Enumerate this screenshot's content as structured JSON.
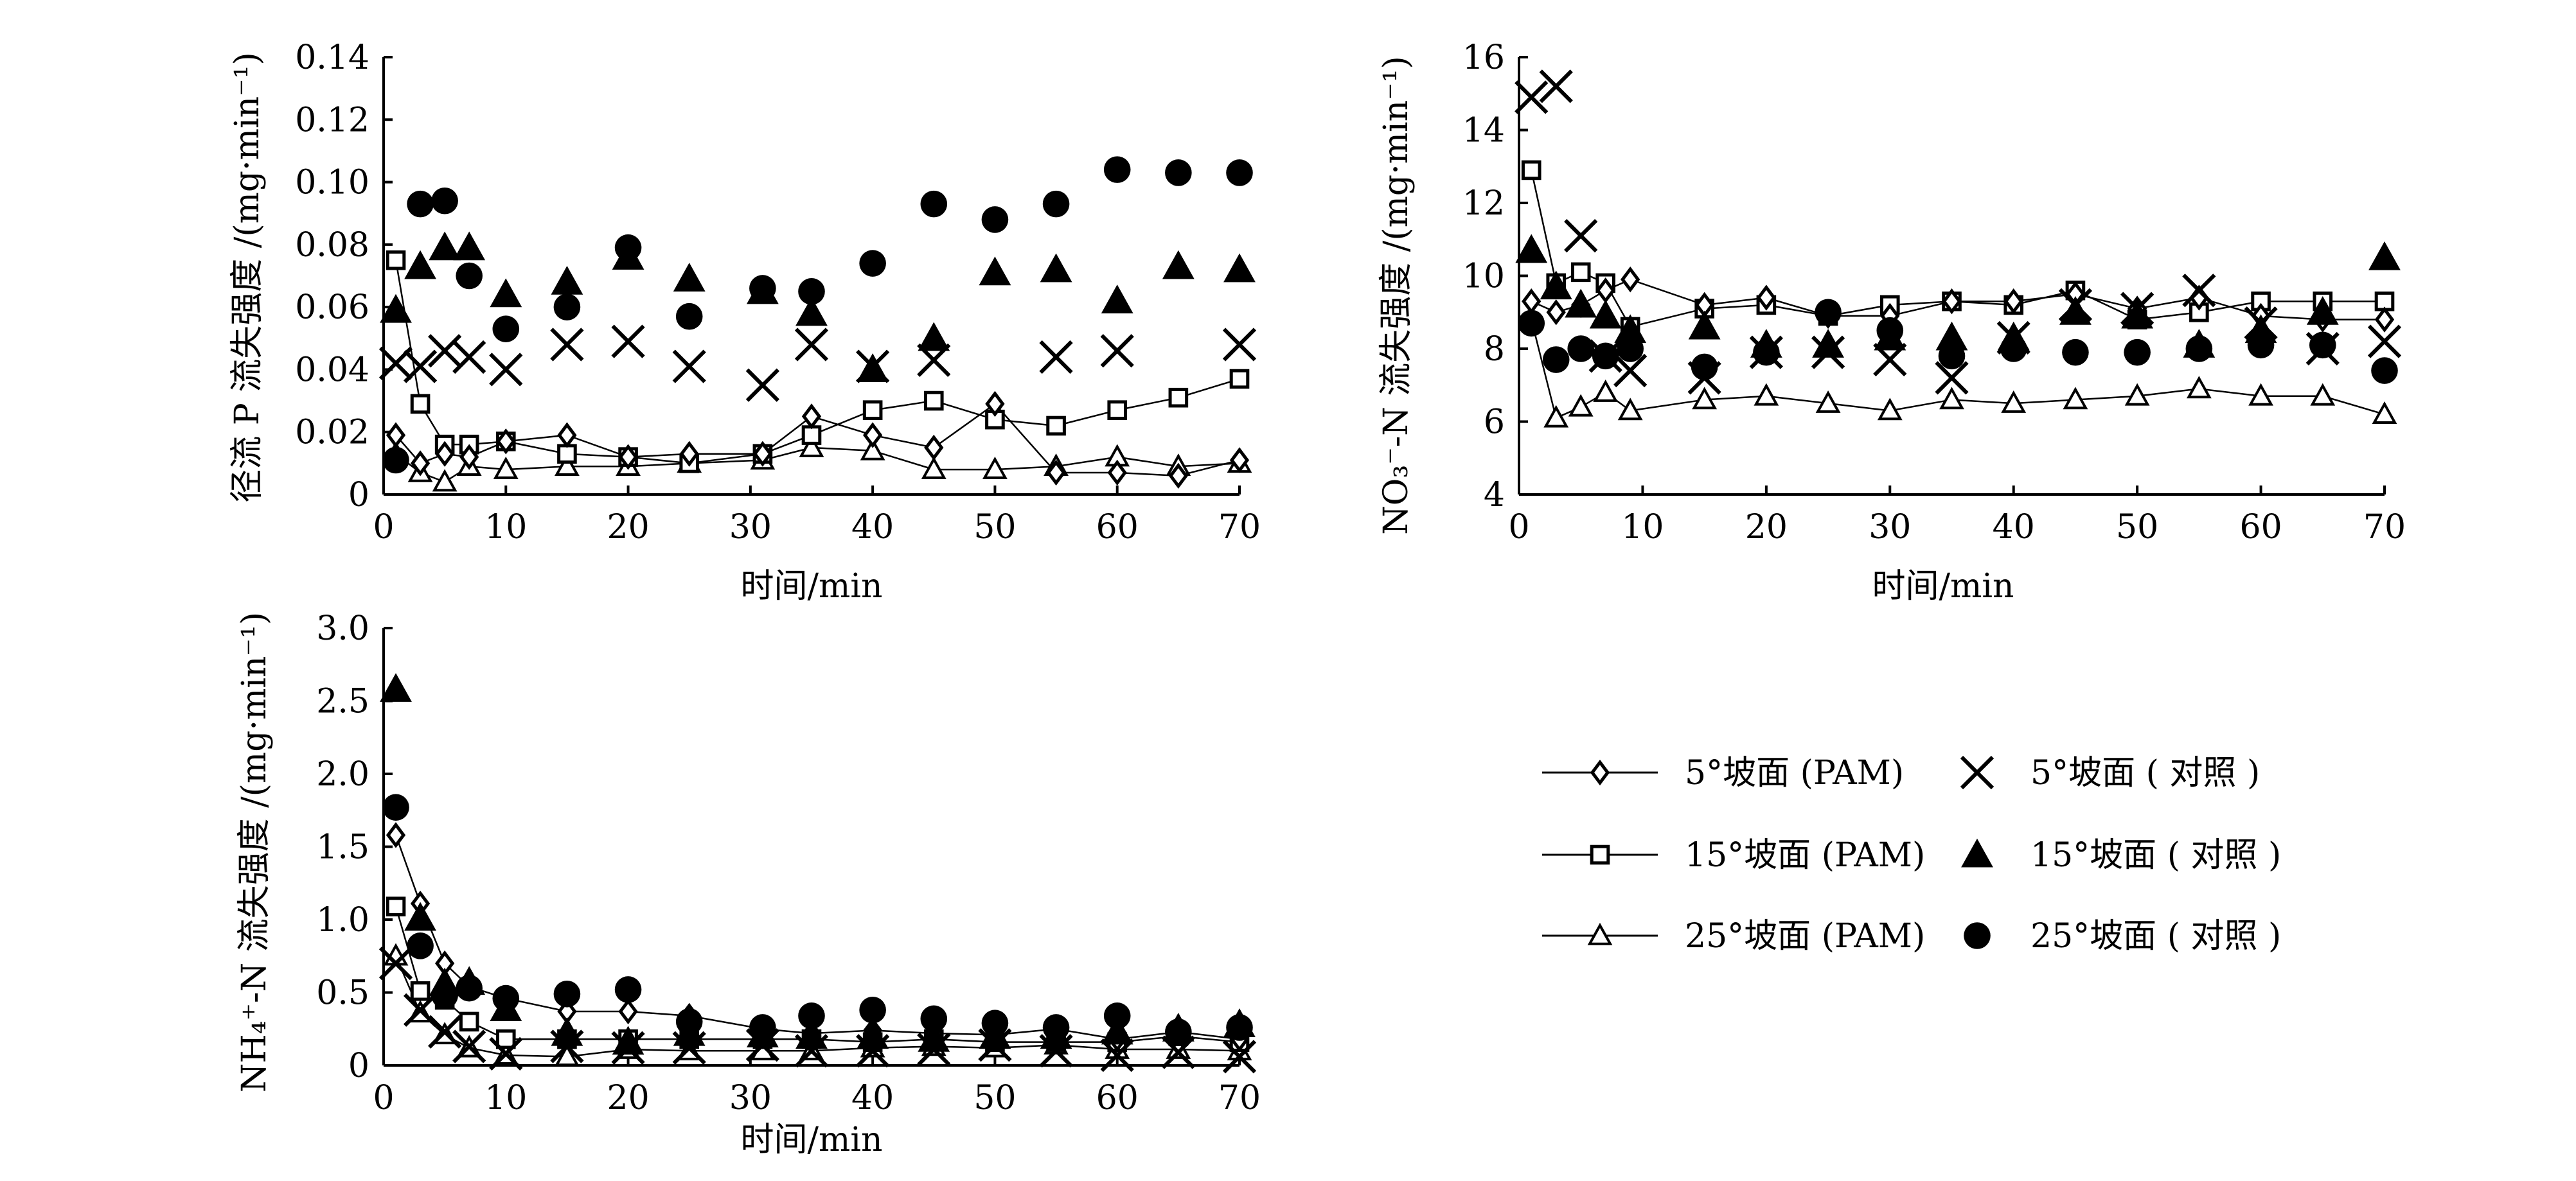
{
  "chart_data": [
    {
      "id": "p",
      "type": "scatter",
      "title": "",
      "xlabel": "时间/min",
      "ylabel": "径流 P 流失强度 /(mg·min⁻¹)",
      "xlim": [
        0,
        70
      ],
      "ylim": [
        0,
        0.14
      ],
      "xticks": [
        "0",
        "10",
        "20",
        "30",
        "40",
        "50",
        "60",
        "70"
      ],
      "yticks": [
        "0",
        "0.02",
        "0.04",
        "0.06",
        "0.08",
        "0.10",
        "0.12",
        "0.14"
      ],
      "series": [
        {
          "name": "5°坡面 (PAM)",
          "marker": "diamond-open",
          "line": true,
          "x": [
            1,
            3,
            5,
            7,
            10,
            15,
            20,
            25,
            31,
            35,
            40,
            45,
            50,
            55,
            60,
            65,
            70
          ],
          "y": [
            0.019,
            0.01,
            0.013,
            0.012,
            0.017,
            0.019,
            0.012,
            0.013,
            0.013,
            0.025,
            0.019,
            0.015,
            0.029,
            0.007,
            0.007,
            0.006,
            0.011
          ]
        },
        {
          "name": "15°坡面 (PAM)",
          "marker": "square-open",
          "line": true,
          "x": [
            1,
            3,
            5,
            7,
            10,
            15,
            20,
            25,
            31,
            35,
            40,
            45,
            50,
            55,
            60,
            65,
            70
          ],
          "y": [
            0.075,
            0.029,
            0.016,
            0.016,
            0.017,
            0.013,
            0.012,
            0.01,
            0.013,
            0.019,
            0.027,
            0.03,
            0.024,
            0.022,
            0.027,
            0.031,
            0.037
          ]
        },
        {
          "name": "25°坡面 (PAM)",
          "marker": "triangle-open",
          "line": true,
          "x": [
            1,
            3,
            5,
            7,
            10,
            15,
            20,
            25,
            31,
            35,
            40,
            45,
            50,
            55,
            60,
            65,
            70
          ],
          "y": [
            0.013,
            0.007,
            0.004,
            0.009,
            0.008,
            0.009,
            0.009,
            0.01,
            0.011,
            0.015,
            0.014,
            0.008,
            0.008,
            0.009,
            0.012,
            0.009,
            0.01
          ]
        },
        {
          "name": "5°坡面 ( 对照 )",
          "marker": "x",
          "x": [
            1,
            3,
            5,
            7,
            10,
            15,
            20,
            25,
            31,
            35,
            40,
            45,
            55,
            60,
            70
          ],
          "y": [
            0.042,
            0.041,
            0.046,
            0.044,
            0.04,
            0.048,
            0.049,
            0.041,
            0.035,
            0.048,
            0.041,
            0.043,
            0.044,
            0.046,
            0.048
          ]
        },
        {
          "name": "15°坡面 ( 对照 )",
          "marker": "triangle-filled",
          "x": [
            1,
            3,
            5,
            7,
            10,
            15,
            20,
            25,
            31,
            35,
            40,
            45,
            50,
            55,
            60,
            65,
            70
          ],
          "y": [
            0.059,
            0.073,
            0.079,
            0.079,
            0.064,
            0.068,
            0.076,
            0.069,
            0.065,
            0.058,
            0.04,
            0.05,
            0.071,
            0.072,
            0.062,
            0.073,
            0.072
          ]
        },
        {
          "name": "25°坡面 ( 对照 )",
          "marker": "circle-filled",
          "x": [
            1,
            3,
            5,
            7,
            10,
            15,
            20,
            25,
            31,
            35,
            40,
            45,
            50,
            55,
            60,
            65,
            70
          ],
          "y": [
            0.011,
            0.093,
            0.094,
            0.07,
            0.053,
            0.06,
            0.079,
            0.057,
            0.066,
            0.065,
            0.074,
            0.093,
            0.088,
            0.093,
            0.104,
            0.103,
            0.103
          ]
        }
      ]
    },
    {
      "id": "no3",
      "type": "scatter",
      "title": "",
      "xlabel": "时间/min",
      "ylabel": "NO₃⁻-N 流失强度 /(mg·min⁻¹)",
      "xlim": [
        0,
        70
      ],
      "ylim": [
        4,
        16
      ],
      "xticks": [
        "0",
        "10",
        "20",
        "30",
        "40",
        "50",
        "60",
        "70"
      ],
      "yticks": [
        "4",
        "6",
        "8",
        "10",
        "12",
        "14",
        "16"
      ],
      "series": [
        {
          "name": "5°坡面 (PAM)",
          "marker": "diamond-open",
          "line": true,
          "x": [
            1,
            3,
            5,
            7,
            9,
            15,
            20,
            25,
            30,
            35,
            40,
            45,
            50,
            55,
            60,
            65,
            70
          ],
          "y": [
            9.3,
            9.0,
            9.2,
            9.6,
            9.9,
            9.2,
            9.4,
            8.9,
            8.9,
            9.3,
            9.3,
            9.5,
            9.1,
            9.4,
            8.9,
            8.8,
            8.8
          ]
        },
        {
          "name": "15°坡面 (PAM)",
          "marker": "square-open",
          "line": true,
          "x": [
            1,
            3,
            5,
            7,
            9,
            15,
            20,
            25,
            30,
            35,
            40,
            45,
            50,
            55,
            60,
            65,
            70
          ],
          "y": [
            12.9,
            9.8,
            10.1,
            9.8,
            8.6,
            9.1,
            9.2,
            8.9,
            9.2,
            9.3,
            9.2,
            9.6,
            8.8,
            9.0,
            9.3,
            9.3,
            9.3
          ]
        },
        {
          "name": "25°坡面 (PAM)",
          "marker": "triangle-open",
          "line": true,
          "x": [
            1,
            3,
            5,
            7,
            9,
            15,
            20,
            25,
            30,
            35,
            40,
            45,
            50,
            55,
            60,
            65,
            70
          ],
          "y": [
            8.8,
            6.1,
            6.4,
            6.8,
            6.3,
            6.6,
            6.7,
            6.5,
            6.3,
            6.6,
            6.5,
            6.6,
            6.7,
            6.9,
            6.7,
            6.7,
            6.2
          ]
        },
        {
          "name": "5°坡面 ( 对照 )",
          "marker": "x",
          "x": [
            1,
            3,
            5,
            7,
            9,
            15,
            20,
            25,
            30,
            35,
            40,
            45,
            50,
            55,
            60,
            65,
            70
          ],
          "y": [
            14.9,
            15.2,
            11.1,
            7.8,
            7.4,
            7.2,
            7.9,
            7.9,
            7.7,
            7.2,
            8.3,
            9.2,
            9.1,
            9.6,
            8.7,
            8.0,
            8.2
          ]
        },
        {
          "name": "15°坡面 ( 对照 )",
          "marker": "triangle-filled",
          "x": [
            1,
            3,
            5,
            7,
            9,
            15,
            20,
            25,
            30,
            35,
            40,
            45,
            50,
            55,
            60,
            65,
            70
          ],
          "y": [
            10.7,
            9.7,
            9.2,
            8.9,
            8.5,
            8.6,
            8.1,
            8.1,
            8.3,
            8.3,
            8.3,
            9.0,
            8.9,
            8.1,
            8.5,
            9.0,
            10.5
          ]
        },
        {
          "name": "25°坡面 ( 对照 )",
          "marker": "circle-filled",
          "x": [
            1,
            3,
            5,
            7,
            9,
            15,
            20,
            25,
            30,
            35,
            40,
            45,
            50,
            55,
            60,
            65,
            70
          ],
          "y": [
            8.7,
            7.7,
            8.0,
            7.8,
            8.0,
            7.5,
            7.9,
            9.0,
            8.5,
            7.8,
            8.0,
            7.9,
            7.9,
            8.0,
            8.1,
            8.1,
            7.4
          ]
        }
      ]
    },
    {
      "id": "nh4",
      "type": "scatter",
      "title": "",
      "xlabel": "时间/min",
      "ylabel": "NH₄⁺-N 流失强度 /(mg·min⁻¹)",
      "xlim": [
        0,
        70
      ],
      "ylim": [
        0,
        3.0
      ],
      "xticks": [
        "0",
        "10",
        "20",
        "30",
        "40",
        "50",
        "60",
        "70"
      ],
      "yticks": [
        "0",
        "0.5",
        "1.0",
        "1.5",
        "2.0",
        "2.5",
        "3.0"
      ],
      "series": [
        {
          "name": "5°坡面 (PAM)",
          "marker": "diamond-open",
          "line": true,
          "x": [
            1,
            3,
            5,
            7,
            10,
            15,
            20,
            25,
            31,
            35,
            40,
            45,
            50,
            55,
            60,
            65,
            70
          ],
          "y": [
            1.58,
            1.11,
            0.7,
            0.54,
            0.46,
            0.37,
            0.37,
            0.34,
            0.25,
            0.22,
            0.24,
            0.22,
            0.21,
            0.25,
            0.18,
            0.23,
            0.18
          ]
        },
        {
          "name": "15°坡面 (PAM)",
          "marker": "square-open",
          "line": true,
          "x": [
            1,
            3,
            5,
            7,
            10,
            15,
            20,
            25,
            31,
            35,
            40,
            45,
            50,
            55,
            60,
            65,
            70
          ],
          "y": [
            1.09,
            0.51,
            0.45,
            0.3,
            0.18,
            0.18,
            0.18,
            0.18,
            0.18,
            0.18,
            0.16,
            0.18,
            0.16,
            0.16,
            0.16,
            0.2,
            0.16
          ]
        },
        {
          "name": "25°坡面 (PAM)",
          "marker": "triangle-open",
          "line": true,
          "x": [
            1,
            3,
            5,
            7,
            10,
            15,
            20,
            25,
            31,
            35,
            40,
            45,
            50,
            55,
            60,
            65,
            70
          ],
          "y": [
            0.75,
            0.36,
            0.21,
            0.12,
            0.07,
            0.06,
            0.11,
            0.1,
            0.1,
            0.1,
            0.12,
            0.13,
            0.12,
            0.14,
            0.11,
            0.11,
            0.1
          ]
        },
        {
          "name": "5°坡面 ( 对照 )",
          "marker": "x",
          "x": [
            1,
            3,
            5,
            7,
            10,
            15,
            20,
            25,
            31,
            35,
            40,
            45,
            50,
            55,
            60,
            65,
            70
          ],
          "y": [
            0.7,
            0.38,
            0.23,
            0.13,
            0.08,
            0.13,
            0.12,
            0.12,
            0.14,
            0.1,
            0.1,
            0.11,
            0.14,
            0.1,
            0.07,
            0.09,
            0.06
          ]
        },
        {
          "name": "15°坡面 ( 对照 )",
          "marker": "triangle-filled",
          "x": [
            1,
            3,
            5,
            7,
            10,
            15,
            20,
            25,
            31,
            35,
            40,
            45,
            50,
            55,
            60,
            65,
            70
          ],
          "y": [
            2.58,
            1.01,
            0.56,
            0.57,
            0.39,
            0.22,
            0.16,
            0.22,
            0.21,
            0.2,
            0.2,
            0.18,
            0.2,
            0.2,
            0.23,
            0.25,
            0.28
          ]
        },
        {
          "name": "25°坡面 ( 对照 )",
          "marker": "circle-filled",
          "x": [
            1,
            3,
            5,
            7,
            10,
            15,
            20,
            25,
            31,
            35,
            40,
            45,
            50,
            55,
            60,
            65,
            70
          ],
          "y": [
            1.77,
            0.82,
            0.48,
            0.53,
            0.46,
            0.49,
            0.52,
            0.3,
            0.26,
            0.34,
            0.38,
            0.32,
            0.29,
            0.26,
            0.34,
            0.23,
            0.26
          ]
        }
      ]
    }
  ],
  "legend": [
    {
      "label": "5°坡面 (PAM)",
      "marker": "diamond-open",
      "line": true
    },
    {
      "label": "5°坡面 ( 对照 )",
      "marker": "x",
      "line": false
    },
    {
      "label": "15°坡面 (PAM)",
      "marker": "square-open",
      "line": true
    },
    {
      "label": "15°坡面 ( 对照 )",
      "marker": "triangle-filled",
      "line": false
    },
    {
      "label": "25°坡面 (PAM)",
      "marker": "triangle-open",
      "line": true
    },
    {
      "label": "25°坡面 ( 对照 )",
      "marker": "circle-filled",
      "line": false
    }
  ]
}
